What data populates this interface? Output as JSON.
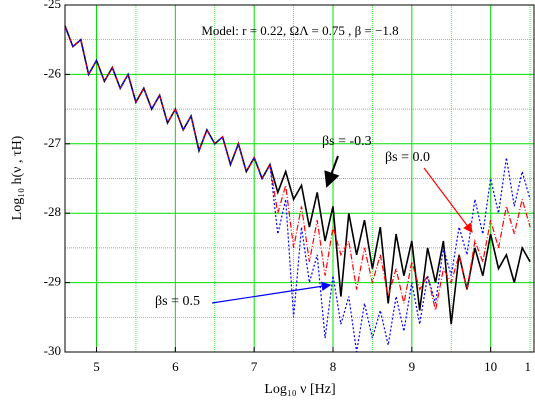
{
  "chart_data": {
    "type": "line",
    "annotation": "Model:  r = 0.22,    ΩΛ = 0.75 ,    β = −1.8",
    "xlabel": "Log₁₀ ν [Hz]",
    "ylabel": "Log₁₀ h(ν , τH)",
    "xlim": [
      4.6,
      10.55
    ],
    "ylim": [
      -30,
      -25
    ],
    "xticks": [
      5,
      6,
      7,
      8,
      9,
      10,
      {
        "value": 10.55,
        "label": "1"
      }
    ],
    "yticks": [
      -25,
      -26,
      -27,
      -28,
      -29,
      -30
    ],
    "xminor": [
      5.5,
      6.5,
      7.5,
      8.5,
      9.5,
      10.5
    ],
    "yminor": [
      -25.5,
      -26.5,
      -27.5,
      -28.5,
      -29.5
    ],
    "grid": true,
    "grid_color": "#00e000",
    "x": [
      4.6,
      4.7,
      4.8,
      4.9,
      5.0,
      5.1,
      5.2,
      5.3,
      5.4,
      5.5,
      5.6,
      5.7,
      5.8,
      5.9,
      6.0,
      6.1,
      6.2,
      6.3,
      6.4,
      6.5,
      6.6,
      6.7,
      6.8,
      6.9,
      7.0,
      7.1,
      7.2,
      7.3,
      7.4,
      7.5,
      7.6,
      7.7,
      7.8,
      7.9,
      8.0,
      8.1,
      8.2,
      8.3,
      8.4,
      8.5,
      8.6,
      8.7,
      8.8,
      8.9,
      9.0,
      9.1,
      9.2,
      9.3,
      9.4,
      9.5,
      9.6,
      9.7,
      9.8,
      9.9,
      10.0,
      10.1,
      10.2,
      10.3,
      10.4,
      10.5
    ],
    "series": [
      {
        "name": "βs = -0.3",
        "color": "#000000",
        "dash": "none",
        "values": [
          -25.3,
          -25.6,
          -25.5,
          -26.0,
          -25.8,
          -26.1,
          -25.9,
          -26.2,
          -26.0,
          -26.4,
          -26.2,
          -26.5,
          -26.3,
          -26.7,
          -26.5,
          -26.8,
          -26.6,
          -27.1,
          -26.8,
          -27.0,
          -26.9,
          -27.3,
          -27.0,
          -27.4,
          -27.2,
          -27.5,
          -27.3,
          -27.7,
          -27.4,
          -27.8,
          -27.6,
          -28.2,
          -27.7,
          -28.4,
          -27.9,
          -29.2,
          -28.0,
          -28.6,
          -28.1,
          -28.8,
          -28.2,
          -29.3,
          -28.3,
          -28.9,
          -28.4,
          -29.4,
          -28.5,
          -29.0,
          -28.4,
          -29.6,
          -28.6,
          -29.1,
          -28.5,
          -28.9,
          -28.3,
          -28.8,
          -28.6,
          -29.0,
          -28.5,
          -28.7
        ]
      },
      {
        "name": "βs = 0.0",
        "color": "#ff0000",
        "dash": "6 2 1 2",
        "values": [
          -25.3,
          -25.6,
          -25.5,
          -26.0,
          -25.8,
          -26.1,
          -25.9,
          -26.2,
          -26.0,
          -26.4,
          -26.2,
          -26.5,
          -26.3,
          -26.7,
          -26.5,
          -26.8,
          -26.6,
          -27.1,
          -26.8,
          -27.0,
          -26.9,
          -27.3,
          -27.0,
          -27.4,
          -27.2,
          -27.5,
          -27.3,
          -28.0,
          -27.6,
          -28.5,
          -27.9,
          -28.7,
          -28.1,
          -28.9,
          -28.2,
          -28.6,
          -28.4,
          -29.1,
          -28.5,
          -29.0,
          -28.6,
          -29.2,
          -28.8,
          -29.3,
          -28.7,
          -29.1,
          -28.9,
          -29.4,
          -28.8,
          -29.0,
          -28.6,
          -29.1,
          -28.4,
          -28.7,
          -28.1,
          -28.5,
          -27.9,
          -28.3,
          -27.8,
          -28.2
        ]
      },
      {
        "name": "βs = 0.5",
        "color": "#0000ff",
        "dash": "2 2",
        "values": [
          -25.3,
          -25.6,
          -25.5,
          -26.0,
          -25.8,
          -26.1,
          -25.9,
          -26.2,
          -26.0,
          -26.4,
          -26.2,
          -26.5,
          -26.3,
          -26.7,
          -26.5,
          -26.8,
          -26.6,
          -27.1,
          -26.8,
          -27.0,
          -26.9,
          -27.3,
          -27.0,
          -27.4,
          -27.2,
          -27.5,
          -27.3,
          -28.3,
          -27.8,
          -29.5,
          -28.2,
          -29.0,
          -28.6,
          -29.8,
          -28.9,
          -29.6,
          -29.2,
          -30.0,
          -29.3,
          -29.8,
          -29.4,
          -29.9,
          -29.2,
          -29.7,
          -29.0,
          -29.6,
          -28.9,
          -29.3,
          -28.5,
          -28.9,
          -28.2,
          -28.6,
          -27.8,
          -28.3,
          -27.5,
          -28.0,
          -27.2,
          -27.9,
          -27.4,
          -27.8
        ]
      }
    ]
  }
}
